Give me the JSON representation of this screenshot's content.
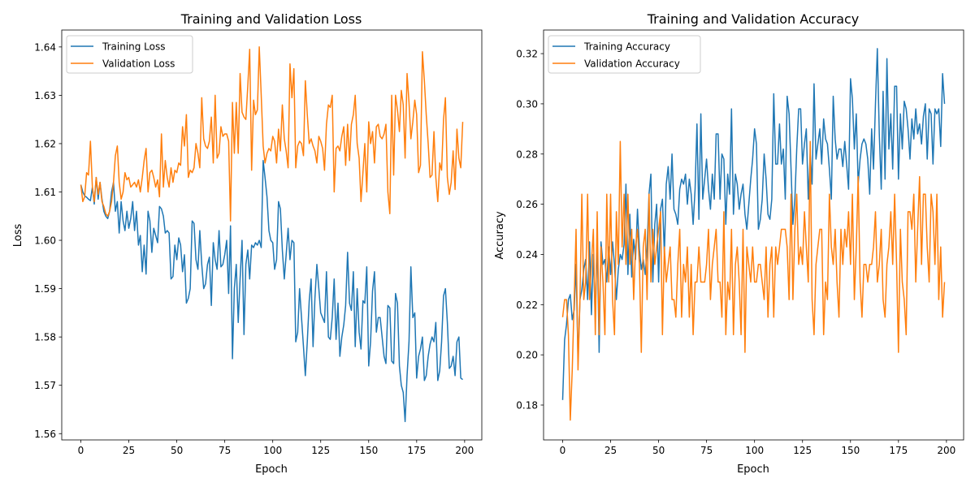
{
  "chart_data": [
    {
      "type": "line",
      "title": "Training and Validation Loss",
      "xlabel": "Epoch",
      "ylabel": "Loss",
      "xlim": [
        -9.95,
        208.95
      ],
      "ylim": [
        1.5587,
        1.6435
      ],
      "xticks": [
        0,
        25,
        50,
        75,
        100,
        125,
        150,
        175,
        200
      ],
      "yticks": [
        "1.56",
        "1.57",
        "1.58",
        "1.59",
        "1.60",
        "1.61",
        "1.62",
        "1.63",
        "1.64"
      ],
      "grid": false,
      "legend": "upper-left",
      "series": [
        {
          "name": "Training Loss",
          "color": "#1f77b4",
          "values": [
            1.6115,
            1.61,
            1.6092,
            1.6089,
            1.6085,
            1.6082,
            1.611,
            1.6075,
            1.613,
            1.6085,
            1.612,
            1.6085,
            1.606,
            1.605,
            1.6045,
            1.606,
            1.61,
            1.612,
            1.606,
            1.608,
            1.6015,
            1.608,
            1.604,
            1.602,
            1.606,
            1.6025,
            1.6045,
            1.608,
            1.602,
            1.606,
            1.599,
            1.601,
            1.5935,
            1.599,
            1.593,
            1.606,
            1.604,
            1.5975,
            1.6025,
            1.601,
            1.5995,
            1.607,
            1.6065,
            1.605,
            1.6015,
            1.602,
            1.6015,
            1.592,
            1.5925,
            1.599,
            1.596,
            1.6005,
            1.599,
            1.5935,
            1.597,
            1.587,
            1.588,
            1.59,
            1.604,
            1.6035,
            1.596,
            1.594,
            1.602,
            1.595,
            1.59,
            1.591,
            1.595,
            1.5965,
            1.5865,
            1.5995,
            1.596,
            1.594,
            1.602,
            1.5945,
            1.595,
            1.597,
            1.6,
            1.589,
            1.603,
            1.5755,
            1.59,
            1.595,
            1.583,
            1.592,
            1.6,
            1.5805,
            1.595,
            1.598,
            1.592,
            1.599,
            1.5985,
            1.5995,
            1.599,
            1.6,
            1.5985,
            1.6165,
            1.613,
            1.609,
            1.602,
            1.6,
            1.5995,
            1.594,
            1.596,
            1.608,
            1.6065,
            1.598,
            1.592,
            1.597,
            1.6025,
            1.596,
            1.6,
            1.5995,
            1.579,
            1.581,
            1.59,
            1.584,
            1.578,
            1.572,
            1.579,
            1.5875,
            1.592,
            1.578,
            1.588,
            1.595,
            1.59,
            1.585,
            1.584,
            1.583,
            1.5935,
            1.58,
            1.5795,
            1.584,
            1.592,
            1.5795,
            1.587,
            1.576,
            1.58,
            1.5825,
            1.5865,
            1.5975,
            1.587,
            1.5855,
            1.5935,
            1.578,
            1.59,
            1.581,
            1.5775,
            1.5875,
            1.587,
            1.5945,
            1.574,
            1.579,
            1.5895,
            1.5935,
            1.581,
            1.584,
            1.584,
            1.58,
            1.576,
            1.5745,
            1.5865,
            1.586,
            1.575,
            1.5745,
            1.589,
            1.587,
            1.574,
            1.57,
            1.5685,
            1.5625,
            1.572,
            1.579,
            1.5945,
            1.584,
            1.585,
            1.5715,
            1.576,
            1.5775,
            1.58,
            1.571,
            1.572,
            1.576,
            1.5785,
            1.58,
            1.579,
            1.583,
            1.571,
            1.573,
            1.579,
            1.5885,
            1.59,
            1.583,
            1.5735,
            1.574,
            1.576,
            1.572,
            1.579,
            1.58,
            1.5715,
            1.5712
          ]
        },
        {
          "name": "Validation Loss",
          "color": "#ff7f0e",
          "values": [
            1.6115,
            1.608,
            1.609,
            1.614,
            1.6135,
            1.6205,
            1.611,
            1.608,
            1.613,
            1.6095,
            1.612,
            1.608,
            1.607,
            1.6055,
            1.605,
            1.606,
            1.608,
            1.612,
            1.6175,
            1.6195,
            1.612,
            1.6085,
            1.61,
            1.614,
            1.6125,
            1.613,
            1.611,
            1.6115,
            1.612,
            1.611,
            1.6125,
            1.61,
            1.613,
            1.6165,
            1.619,
            1.61,
            1.614,
            1.6145,
            1.613,
            1.611,
            1.6125,
            1.609,
            1.622,
            1.611,
            1.6165,
            1.613,
            1.611,
            1.615,
            1.612,
            1.6145,
            1.614,
            1.616,
            1.6155,
            1.6235,
            1.6195,
            1.626,
            1.613,
            1.6145,
            1.614,
            1.615,
            1.62,
            1.618,
            1.615,
            1.6295,
            1.621,
            1.6195,
            1.619,
            1.6205,
            1.6255,
            1.616,
            1.63,
            1.617,
            1.618,
            1.6235,
            1.6215,
            1.622,
            1.622,
            1.6205,
            1.604,
            1.6285,
            1.618,
            1.6285,
            1.618,
            1.6345,
            1.6265,
            1.6255,
            1.625,
            1.632,
            1.6395,
            1.6145,
            1.629,
            1.626,
            1.627,
            1.64,
            1.63,
            1.6195,
            1.616,
            1.618,
            1.619,
            1.6185,
            1.6215,
            1.6205,
            1.616,
            1.623,
            1.6185,
            1.628,
            1.621,
            1.6185,
            1.615,
            1.6365,
            1.6295,
            1.6355,
            1.615,
            1.6195,
            1.6205,
            1.62,
            1.6175,
            1.633,
            1.626,
            1.62,
            1.621,
            1.6195,
            1.6185,
            1.616,
            1.6215,
            1.6205,
            1.619,
            1.6145,
            1.624,
            1.628,
            1.6275,
            1.63,
            1.61,
            1.619,
            1.6195,
            1.6185,
            1.6215,
            1.6235,
            1.6155,
            1.624,
            1.6165,
            1.624,
            1.626,
            1.63,
            1.62,
            1.617,
            1.608,
            1.614,
            1.62,
            1.61,
            1.6245,
            1.62,
            1.6225,
            1.616,
            1.6235,
            1.624,
            1.6215,
            1.621,
            1.622,
            1.624,
            1.61,
            1.6055,
            1.63,
            1.6135,
            1.63,
            1.627,
            1.6225,
            1.631,
            1.628,
            1.617,
            1.6345,
            1.6285,
            1.621,
            1.6245,
            1.629,
            1.626,
            1.614,
            1.6155,
            1.639,
            1.633,
            1.626,
            1.62,
            1.613,
            1.6135,
            1.6225,
            1.613,
            1.608,
            1.616,
            1.6145,
            1.625,
            1.6295,
            1.613,
            1.6095,
            1.612,
            1.6185,
            1.6105,
            1.623,
            1.617,
            1.615,
            1.6245
          ]
        }
      ]
    },
    {
      "type": "line",
      "title": "Training and Validation Accuracy",
      "xlabel": "Epoch",
      "ylabel": "Accuracy",
      "xlim": [
        -9.95,
        208.95
      ],
      "ylim": [
        0.1661,
        0.3294
      ],
      "xticks": [
        0,
        25,
        50,
        75,
        100,
        125,
        150,
        175,
        200
      ],
      "yticks": [
        "0.18",
        "0.20",
        "0.22",
        "0.24",
        "0.26",
        "0.28",
        "0.30",
        "0.32"
      ],
      "grid": false,
      "legend": "upper-left",
      "series": [
        {
          "name": "Training Accuracy",
          "color": "#1f77b4",
          "values": [
            0.182,
            0.206,
            0.212,
            0.222,
            0.224,
            0.214,
            0.218,
            0.236,
            0.198,
            0.222,
            0.226,
            0.234,
            0.238,
            0.222,
            0.245,
            0.216,
            0.24,
            0.214,
            0.248,
            0.201,
            0.245,
            0.236,
            0.238,
            0.229,
            0.243,
            0.232,
            0.245,
            0.236,
            0.222,
            0.234,
            0.24,
            0.238,
            0.244,
            0.268,
            0.232,
            0.256,
            0.231,
            0.246,
            0.238,
            0.258,
            0.242,
            0.234,
            0.238,
            0.232,
            0.242,
            0.264,
            0.272,
            0.229,
            0.252,
            0.26,
            0.229,
            0.258,
            0.262,
            0.24,
            0.268,
            0.275,
            0.262,
            0.28,
            0.258,
            0.256,
            0.252,
            0.266,
            0.27,
            0.268,
            0.272,
            0.26,
            0.27,
            0.264,
            0.252,
            0.266,
            0.292,
            0.254,
            0.296,
            0.262,
            0.27,
            0.278,
            0.266,
            0.258,
            0.272,
            0.262,
            0.288,
            0.288,
            0.262,
            0.28,
            0.278,
            0.252,
            0.272,
            0.264,
            0.298,
            0.256,
            0.272,
            0.268,
            0.258,
            0.264,
            0.268,
            0.256,
            0.25,
            0.26,
            0.27,
            0.278,
            0.29,
            0.284,
            0.25,
            0.254,
            0.262,
            0.28,
            0.27,
            0.256,
            0.254,
            0.262,
            0.304,
            0.276,
            0.276,
            0.292,
            0.276,
            0.282,
            0.262,
            0.303,
            0.296,
            0.274,
            0.252,
            0.262,
            0.282,
            0.298,
            0.298,
            0.276,
            0.284,
            0.29,
            0.262,
            0.28,
            0.268,
            0.308,
            0.278,
            0.284,
            0.29,
            0.276,
            0.294,
            0.286,
            0.284,
            0.274,
            0.262,
            0.303,
            0.286,
            0.278,
            0.282,
            0.282,
            0.275,
            0.285,
            0.276,
            0.266,
            0.31,
            0.302,
            0.282,
            0.296,
            0.268,
            0.278,
            0.284,
            0.286,
            0.284,
            0.278,
            0.264,
            0.29,
            0.274,
            0.3,
            0.322,
            0.288,
            0.266,
            0.305,
            0.27,
            0.318,
            0.282,
            0.296,
            0.274,
            0.307,
            0.307,
            0.27,
            0.296,
            0.282,
            0.301,
            0.298,
            0.29,
            0.278,
            0.294,
            0.286,
            0.298,
            0.288,
            0.292,
            0.284,
            0.295,
            0.3,
            0.278,
            0.298,
            0.296,
            0.276,
            0.298,
            0.296,
            0.298,
            0.283,
            0.312,
            0.3
          ]
        },
        {
          "name": "Validation Accuracy",
          "color": "#ff7f0e",
          "values": [
            0.215,
            0.222,
            0.222,
            0.208,
            0.174,
            0.194,
            0.222,
            0.25,
            0.194,
            0.222,
            0.264,
            0.222,
            0.229,
            0.264,
            0.222,
            0.236,
            0.25,
            0.208,
            0.257,
            0.208,
            0.243,
            0.229,
            0.208,
            0.264,
            0.229,
            0.264,
            0.222,
            0.208,
            0.257,
            0.236,
            0.285,
            0.243,
            0.264,
            0.236,
            0.264,
            0.236,
            0.25,
            0.222,
            0.243,
            0.25,
            0.236,
            0.201,
            0.243,
            0.25,
            0.222,
            0.264,
            0.229,
            0.25,
            0.236,
            0.243,
            0.25,
            0.257,
            0.208,
            0.243,
            0.229,
            0.236,
            0.243,
            0.222,
            0.222,
            0.215,
            0.236,
            0.25,
            0.215,
            0.236,
            0.229,
            0.243,
            0.215,
            0.236,
            0.208,
            0.229,
            0.229,
            0.243,
            0.229,
            0.229,
            0.229,
            0.236,
            0.25,
            0.222,
            0.236,
            0.243,
            0.25,
            0.229,
            0.229,
            0.215,
            0.257,
            0.208,
            0.229,
            0.222,
            0.25,
            0.208,
            0.236,
            0.243,
            0.229,
            0.208,
            0.25,
            0.201,
            0.243,
            0.236,
            0.229,
            0.243,
            0.229,
            0.229,
            0.236,
            0.236,
            0.229,
            0.222,
            0.243,
            0.215,
            0.236,
            0.243,
            0.215,
            0.243,
            0.236,
            0.243,
            0.25,
            0.25,
            0.25,
            0.243,
            0.222,
            0.264,
            0.222,
            0.25,
            0.264,
            0.236,
            0.243,
            0.236,
            0.257,
            0.243,
            0.229,
            0.285,
            0.222,
            0.208,
            0.236,
            0.243,
            0.25,
            0.25,
            0.208,
            0.229,
            0.222,
            0.264,
            0.243,
            0.236,
            0.25,
            0.229,
            0.215,
            0.25,
            0.236,
            0.25,
            0.243,
            0.257,
            0.236,
            0.264,
            0.222,
            0.243,
            0.271,
            0.229,
            0.215,
            0.236,
            0.236,
            0.229,
            0.236,
            0.236,
            0.243,
            0.257,
            0.229,
            0.236,
            0.25,
            0.222,
            0.215,
            0.236,
            0.243,
            0.257,
            0.236,
            0.264,
            0.236,
            0.201,
            0.25,
            0.229,
            0.222,
            0.208,
            0.257,
            0.257,
            0.25,
            0.264,
            0.229,
            0.25,
            0.271,
            0.236,
            0.264,
            0.264,
            0.243,
            0.229,
            0.264,
            0.257,
            0.236,
            0.264,
            0.222,
            0.243,
            0.215,
            0.229
          ]
        }
      ]
    }
  ]
}
